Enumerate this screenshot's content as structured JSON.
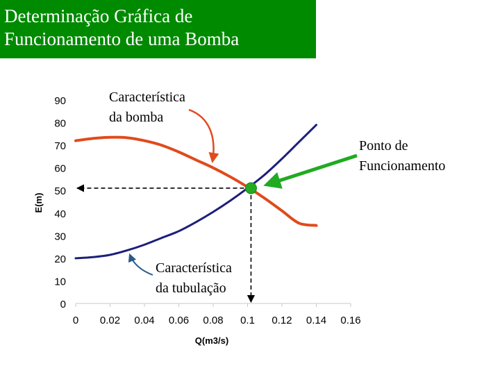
{
  "title": {
    "line1": "Determinação Gráfica de",
    "line2": "Funcionamento de uma Bomba"
  },
  "colors": {
    "title_bg": "#008a00",
    "pump": "#e04a1c",
    "system": "#1c1f78",
    "operating_point": "#22aa22",
    "pointer_arrow": "#22aa22",
    "curve_arrow": "#e04a1c",
    "tub_arrow": "#2a5a8a"
  },
  "chart_data": {
    "type": "line",
    "xlabel": "Q(m3/s)",
    "ylabel": "E(m)",
    "xlim": [
      0,
      0.16
    ],
    "ylim": [
      0,
      90
    ],
    "x_ticks": [
      "0",
      "0.02",
      "0.04",
      "0.06",
      "0.08",
      "0.1",
      "0.12",
      "0.14",
      "0.16"
    ],
    "y_ticks": [
      "0",
      "10",
      "20",
      "30",
      "40",
      "50",
      "60",
      "70",
      "80",
      "90"
    ],
    "grid": false,
    "series": [
      {
        "key": "pump",
        "x": [
          0,
          0.01,
          0.02,
          0.03,
          0.04,
          0.05,
          0.06,
          0.07,
          0.08,
          0.09,
          0.1,
          0.11,
          0.12,
          0.13,
          0.14
        ],
        "y": [
          72,
          73,
          73.5,
          73.3,
          72,
          70,
          67,
          63.5,
          60,
          56,
          51.5,
          46.5,
          41,
          35.5,
          34.5
        ]
      },
      {
        "key": "system",
        "x": [
          0,
          0.01,
          0.02,
          0.03,
          0.04,
          0.05,
          0.06,
          0.07,
          0.08,
          0.09,
          0.1,
          0.11,
          0.12,
          0.13,
          0.14
        ],
        "y": [
          20,
          20.5,
          21.5,
          23.5,
          26,
          29,
          32,
          36,
          40.5,
          45.5,
          51,
          57,
          64,
          71.5,
          79
        ]
      }
    ],
    "operating_point": {
      "x": 0.102,
      "y": 51
    },
    "annotations": {
      "pump_label": [
        "Característica",
        "da bomba"
      ],
      "system_label": [
        "Característica",
        "da tubulação"
      ],
      "point_label": [
        "Ponto de",
        "Funcionamento"
      ]
    }
  }
}
